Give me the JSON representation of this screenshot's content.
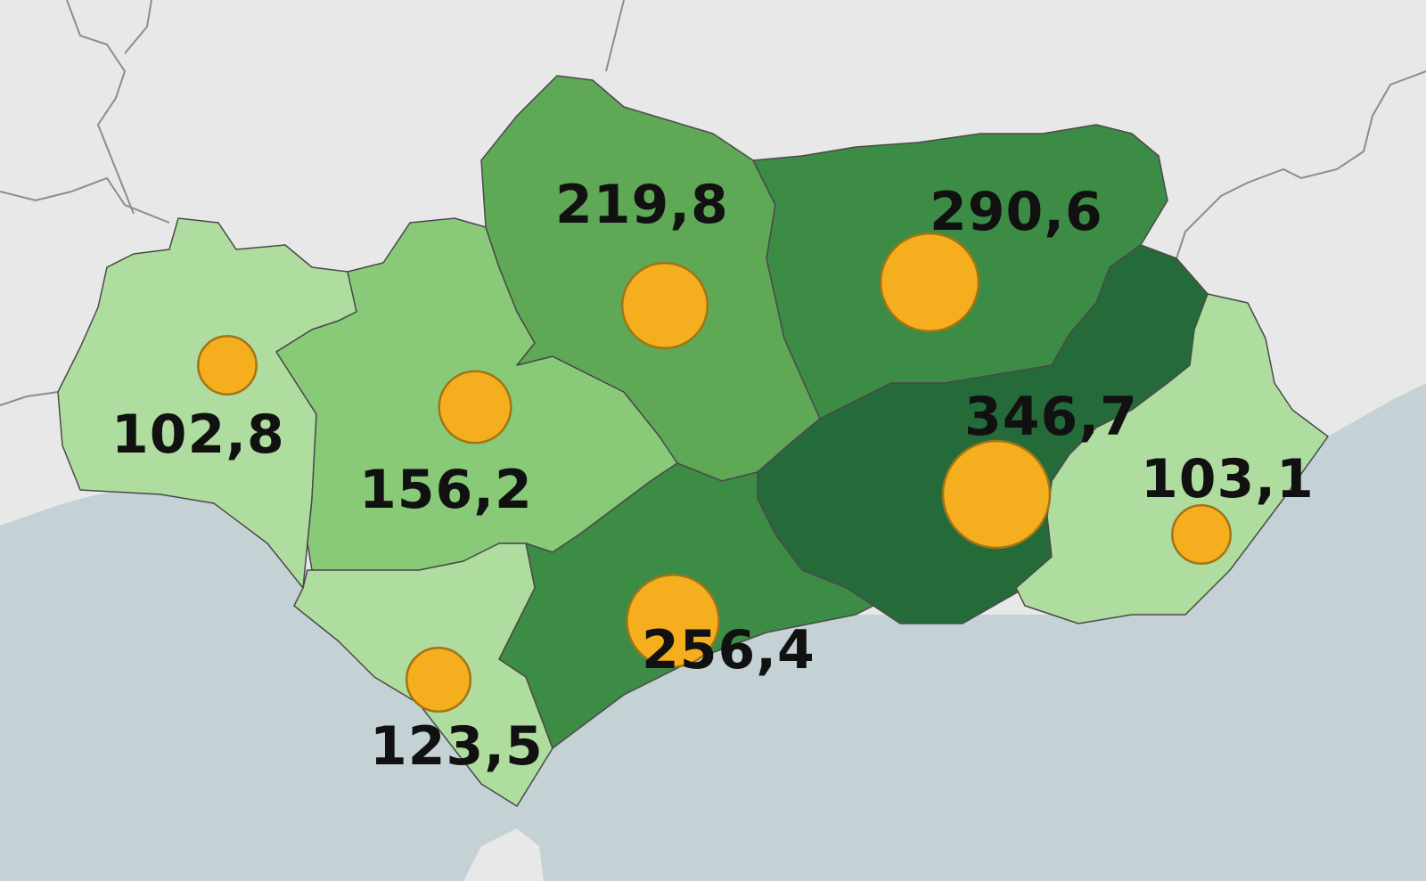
{
  "colors": {
    "land": "#e8e8e8",
    "sea": "#c4d2d5",
    "border": "#8c8c8c",
    "shade_1": "#aedd9f",
    "shade_2": "#88ca78",
    "shade_3": "#5ea856",
    "shade_4": "#3c8c46",
    "shade_5": "#256b3a",
    "bubble": "#f5ae1e",
    "bubble_stroke": "#a07516"
  },
  "regions": [
    {
      "id": "huelva",
      "label": "102,8",
      "value": 102.8,
      "shade": "shade_1"
    },
    {
      "id": "sevilla",
      "label": "156,2",
      "value": 156.2,
      "shade": "shade_2"
    },
    {
      "id": "cordoba",
      "label": "219,8",
      "value": 219.8,
      "shade": "shade_3"
    },
    {
      "id": "jaen",
      "label": "290,6",
      "value": 290.6,
      "shade": "shade_4"
    },
    {
      "id": "granada",
      "label": "346,7",
      "value": 346.7,
      "shade": "shade_5"
    },
    {
      "id": "almeria",
      "label": "103,1",
      "value": 103.1,
      "shade": "shade_1"
    },
    {
      "id": "malaga",
      "label": "256,4",
      "value": 256.4,
      "shade": "shade_4"
    },
    {
      "id": "cadiz",
      "label": "123,5",
      "value": 123.5,
      "shade": "shade_1"
    }
  ]
}
